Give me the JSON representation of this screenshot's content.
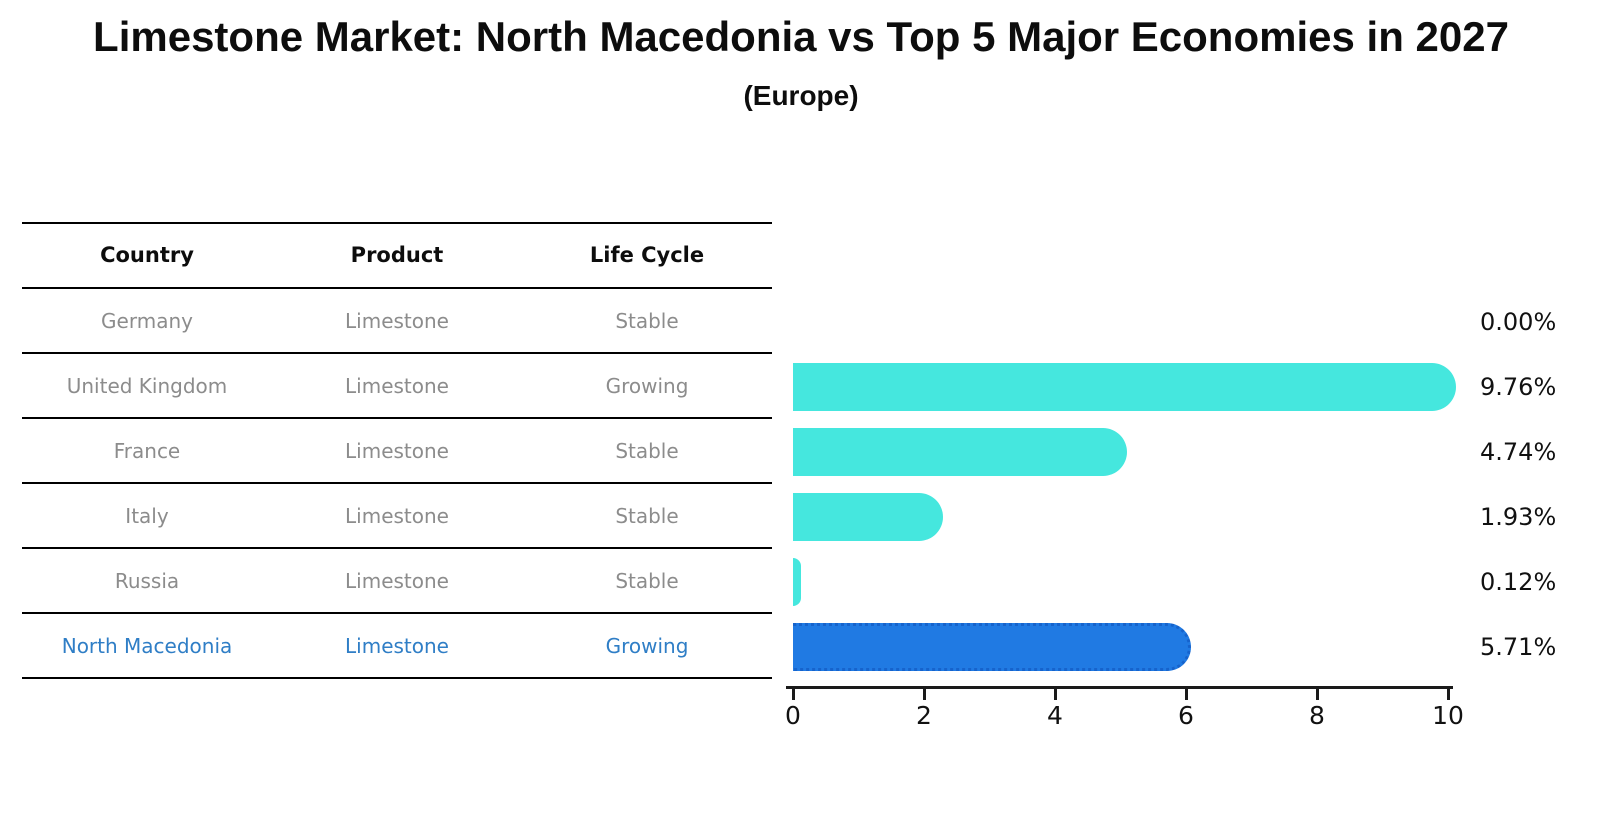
{
  "title": "Limestone Market: North Macedonia vs Top 5 Major Economies in 2027",
  "subtitle": "(Europe)",
  "table": {
    "headers": [
      "Country",
      "Product",
      "Life Cycle"
    ],
    "rows": [
      {
        "country": "Germany",
        "product": "Limestone",
        "life_cycle": "Stable",
        "highlight": false
      },
      {
        "country": "United Kingdom",
        "product": "Limestone",
        "life_cycle": "Growing",
        "highlight": false
      },
      {
        "country": "France",
        "product": "Limestone",
        "life_cycle": "Stable",
        "highlight": false
      },
      {
        "country": "Italy",
        "product": "Limestone",
        "life_cycle": "Stable",
        "highlight": false
      },
      {
        "country": "Russia",
        "product": "Limestone",
        "life_cycle": "Stable",
        "highlight": false
      },
      {
        "country": "North Macedonia",
        "product": "Limestone",
        "life_cycle": "Growing",
        "highlight": true
      }
    ]
  },
  "chart_data": {
    "type": "bar",
    "orientation": "horizontal",
    "title": "Limestone Market: North Macedonia vs Top 5 Major Economies in 2027",
    "subtitle": "(Europe)",
    "categories": [
      "Germany",
      "United Kingdom",
      "France",
      "Italy",
      "Russia",
      "North Macedonia"
    ],
    "values": [
      0.0,
      9.76,
      4.74,
      1.93,
      0.12,
      5.71
    ],
    "value_labels": [
      "0.00%",
      "9.76%",
      "4.74%",
      "1.93%",
      "0.12%",
      "5.71%"
    ],
    "xlabel": "",
    "ylabel": "",
    "xlim": [
      0,
      10
    ],
    "xticks": [
      0,
      2,
      4,
      6,
      8,
      10
    ],
    "grid": false,
    "legend": "none",
    "highlight_index": 5,
    "bar_color": "#45e7de",
    "highlight_bar_color": "#207ae3",
    "highlight_bar_edge_color": "#1663cc",
    "value_label_color": "#111111"
  },
  "colors": {
    "background": "#ffffff",
    "table_text": "#8c8c8c",
    "table_header_text": "#0d0d0d",
    "highlight_text": "#2f7ec6",
    "line": "#000000",
    "axis": "#1a1a1a"
  }
}
